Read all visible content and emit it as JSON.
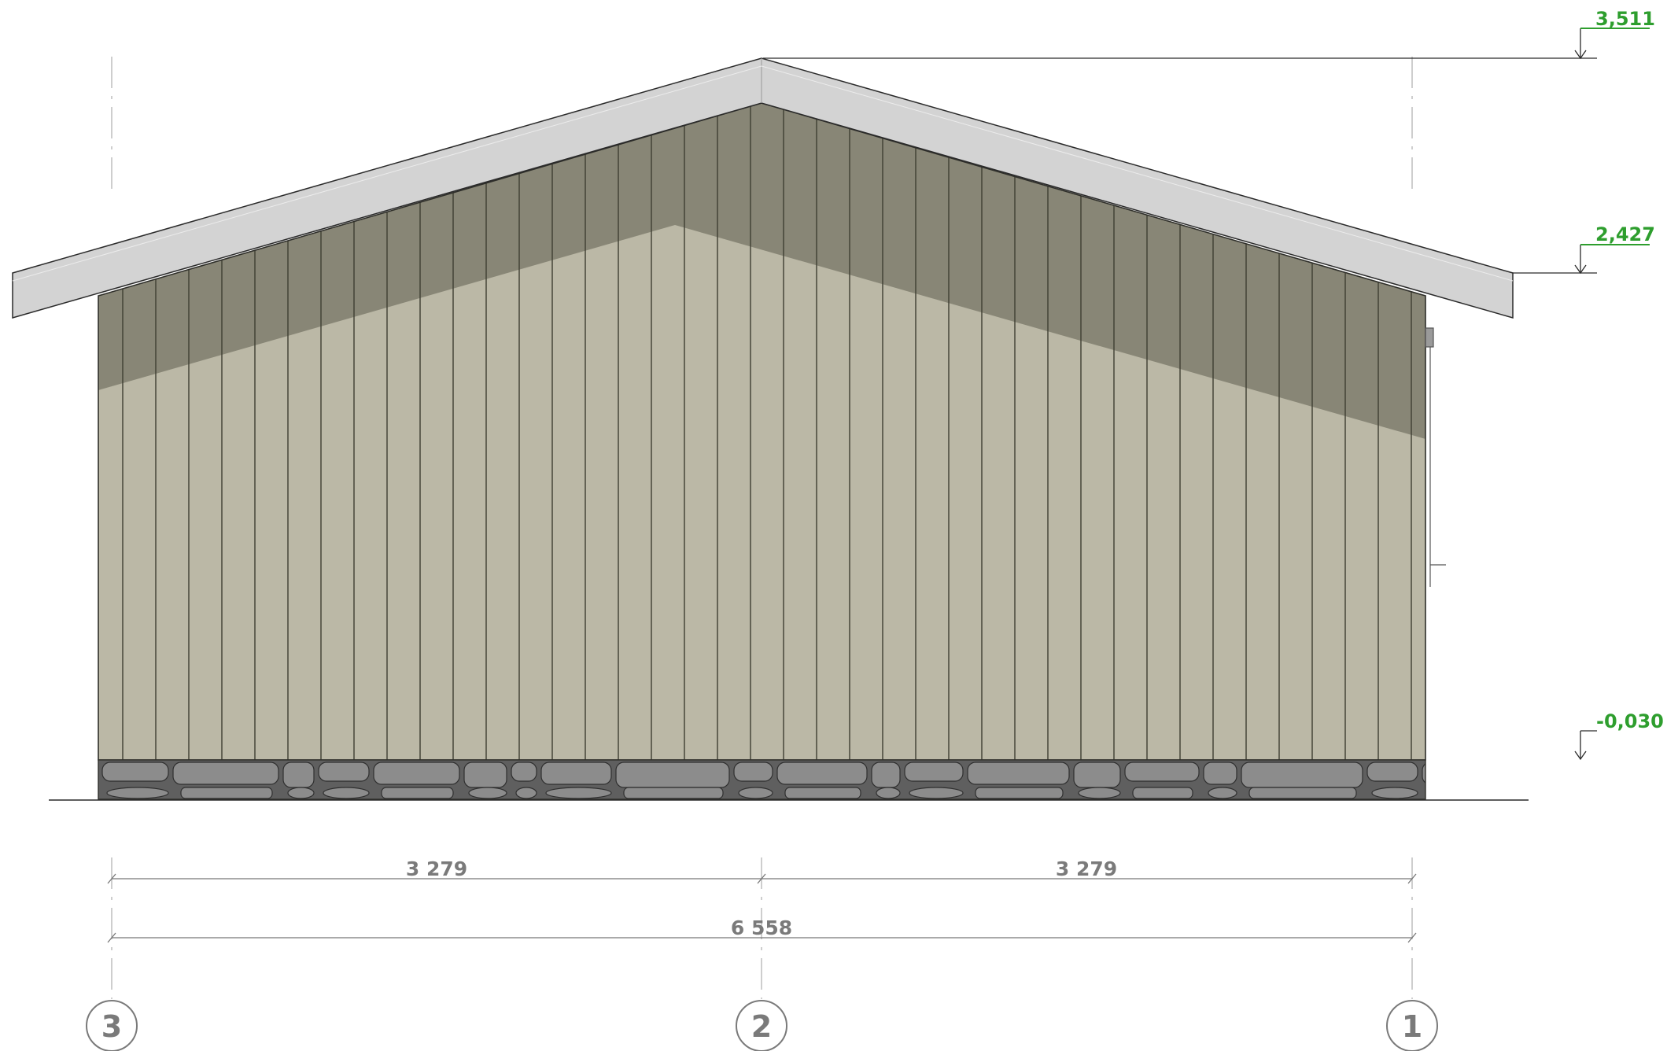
{
  "drawing": {
    "type": "building-elevation",
    "levels": [
      {
        "id": "ridge",
        "value": "3,511"
      },
      {
        "id": "eave",
        "value": "2,427"
      },
      {
        "id": "ground",
        "value": "-0,030"
      }
    ],
    "dimensions": [
      {
        "id": "left-span",
        "value": "3 279"
      },
      {
        "id": "right-span",
        "value": "3 279"
      },
      {
        "id": "overall",
        "value": "6 558"
      }
    ],
    "grid_axes": [
      {
        "id": "axis-3",
        "label": "3"
      },
      {
        "id": "axis-2",
        "label": "2"
      },
      {
        "id": "axis-1",
        "label": "1"
      }
    ],
    "colors": {
      "cladding": "#bbb8a6",
      "cladding_shadow": "#888676",
      "roof": "#d3d3d3",
      "plinth_stone": "#8c8c8c",
      "level_marker": "#2e9e2e",
      "dimension": "#7a7a7a"
    }
  }
}
